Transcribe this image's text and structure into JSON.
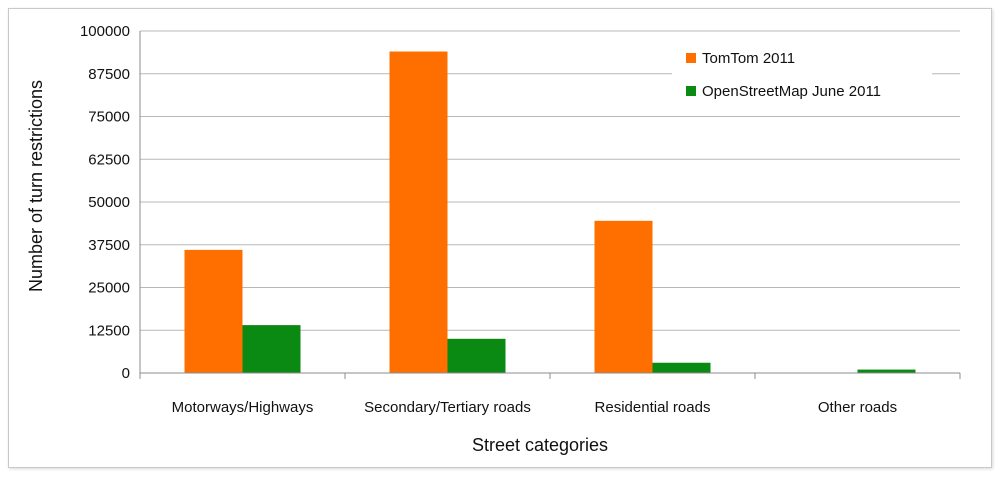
{
  "chart_data": {
    "type": "bar",
    "title": "",
    "xlabel": "Street categories",
    "ylabel": "Number of turn restrictions",
    "ylim": [
      0,
      100000
    ],
    "yticks": [
      "0",
      "12500",
      "25000",
      "37500",
      "50000",
      "62500",
      "75000",
      "87500",
      "100000"
    ],
    "ytick_values": [
      0,
      12500,
      25000,
      37500,
      50000,
      62500,
      75000,
      87500,
      100000
    ],
    "categories": [
      "Motorways/Highways",
      "Secondary/Tertiary roads",
      "Residential roads",
      "Other roads"
    ],
    "series": [
      {
        "name": "TomTom 2011",
        "color": "#ff6f00",
        "values": [
          36000,
          94000,
          44500,
          0
        ]
      },
      {
        "name": "OpenStreetMap June 2011",
        "color": "#0a8a12",
        "values": [
          14000,
          10000,
          3000,
          1000
        ]
      }
    ],
    "grid": true,
    "legend_position": "top-right"
  }
}
